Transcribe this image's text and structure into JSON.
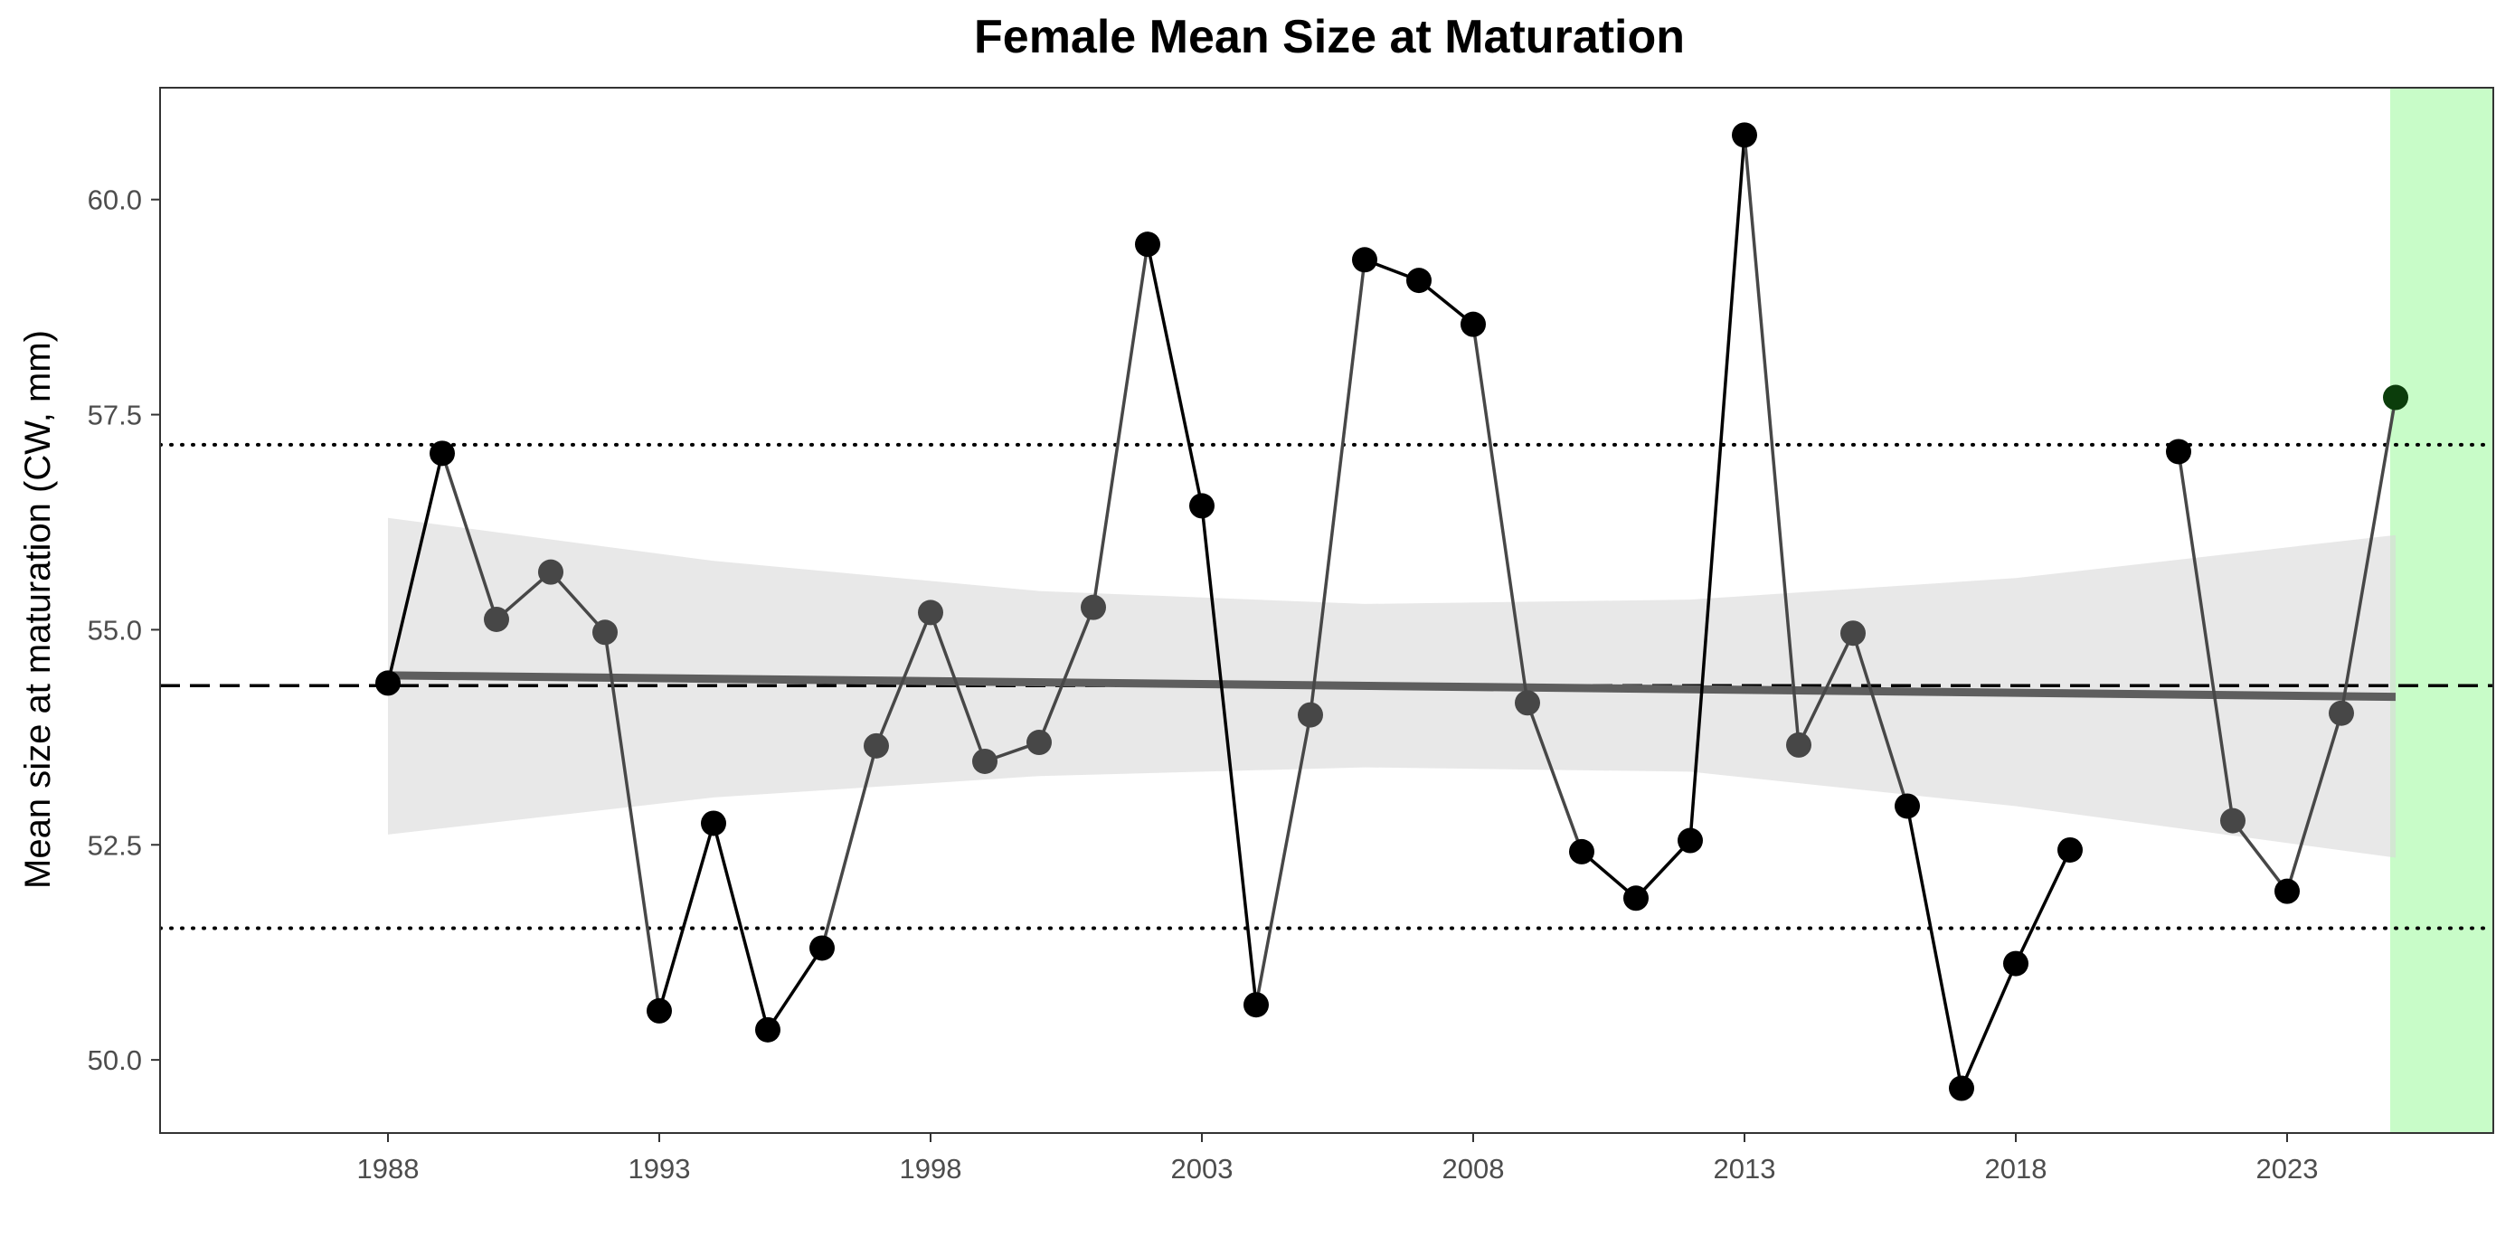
{
  "chart_data": {
    "type": "line",
    "title": "Female Mean Size at Maturation",
    "xlabel": "",
    "ylabel": "Mean size at maturation (CW, mm)",
    "xlim": [
      1983.8,
      2026.8
    ],
    "ylim": [
      49.15,
      61.3
    ],
    "x_ticks": [
      1988,
      1993,
      1998,
      2003,
      2008,
      2013,
      2018,
      2023
    ],
    "y_ticks": [
      50.0,
      52.5,
      55.0,
      57.5,
      60.0
    ],
    "y_tick_labels": [
      "50.0",
      "52.5",
      "55.0",
      "57.5",
      "60.0"
    ],
    "grid": false,
    "legend": "none",
    "colors": {
      "extreme_point": "#000000",
      "normal_point": "#474747",
      "highlight_point": "#0b3d0b",
      "trend_line": "#5e5e5e",
      "confidence_band": "#d9d9d9",
      "highlight_band": "#c8fcc8"
    },
    "mean_line": 54.35,
    "upper_sd_line": 57.15,
    "lower_sd_line": 51.53,
    "highlight_region": [
      2024.9,
      2027.2
    ],
    "trend": {
      "x": [
        1988,
        2025
      ],
      "y": [
        54.47,
        54.22
      ]
    },
    "confidence_band": {
      "x": [
        1988,
        1994,
        2000,
        2006,
        2012,
        2018,
        2025
      ],
      "upper": [
        56.3,
        55.8,
        55.45,
        55.3,
        55.35,
        55.6,
        56.1
      ],
      "lower": [
        52.62,
        53.05,
        53.3,
        53.4,
        53.35,
        52.95,
        52.35
      ]
    },
    "series": [
      {
        "x": [
          1988,
          1989,
          1990,
          1991,
          1992,
          1993,
          1994,
          1995,
          1996,
          1997,
          1998,
          1999,
          2000,
          2001,
          2002,
          2003,
          2004,
          2005,
          2006,
          2007,
          2008,
          2009,
          2010,
          2011,
          2012,
          2013,
          2014,
          2015,
          2016,
          2017,
          2018,
          2019,
          2021,
          2022,
          2023,
          2024,
          2025
        ],
        "values": [
          54.38,
          57.05,
          55.12,
          55.67,
          54.97,
          50.57,
          52.75,
          50.35,
          51.3,
          53.65,
          55.2,
          53.47,
          53.69,
          55.26,
          59.48,
          56.44,
          50.64,
          54.01,
          59.3,
          59.06,
          58.55,
          54.15,
          52.42,
          51.88,
          52.55,
          60.75,
          53.66,
          54.96,
          52.95,
          49.67,
          51.12,
          52.44,
          57.07,
          52.78,
          51.96,
          54.03,
          57.7
        ],
        "status": [
          "extreme",
          "extreme",
          "normal",
          "normal",
          "normal",
          "extreme",
          "extreme",
          "extreme",
          "extreme",
          "normal",
          "normal",
          "normal",
          "normal",
          "normal",
          "extreme",
          "extreme",
          "extreme",
          "normal",
          "extreme",
          "extreme",
          "extreme",
          "normal",
          "extreme",
          "extreme",
          "extreme",
          "extreme",
          "normal",
          "normal",
          "extreme",
          "extreme",
          "extreme",
          "extreme",
          "extreme",
          "normal",
          "extreme",
          "normal",
          "highlight"
        ]
      }
    ]
  }
}
